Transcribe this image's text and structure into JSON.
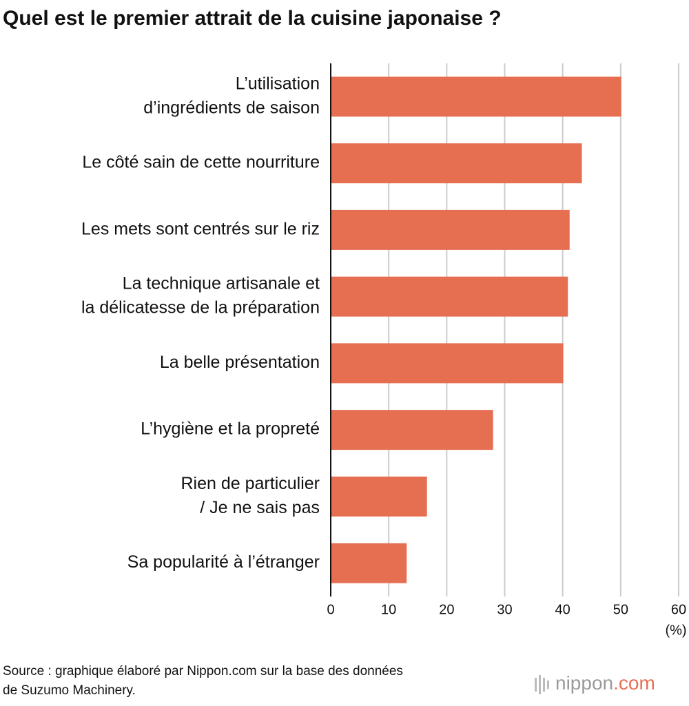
{
  "chart_data": {
    "type": "bar",
    "orientation": "horizontal",
    "title": "Quel est le premier attrait de la cuisine japonaise ?",
    "categories": [
      [
        "L’utilisation",
        "d’ingrédients de saison"
      ],
      [
        "Le côté sain de cette nourriture"
      ],
      [
        "Les mets sont centrés sur le riz"
      ],
      [
        "La technique artisanale et",
        "la délicatesse de la préparation"
      ],
      [
        "La belle présentation"
      ],
      [
        "L’hygiène et la propreté"
      ],
      [
        "Rien de particulier",
        "/ Je ne sais pas"
      ],
      [
        "Sa popularité à l’étranger"
      ]
    ],
    "values": [
      50.1,
      43.3,
      41.2,
      40.9,
      40.1,
      28.0,
      16.6,
      13.1
    ],
    "color": "#e66f52",
    "xlim": [
      0,
      60
    ],
    "xticks": [
      0,
      10,
      20,
      30,
      40,
      50,
      60
    ],
    "grid": true,
    "x_unit": "(%)",
    "source": [
      "Source : graphique élaboré par Nippon.com sur la base des données",
      "de Suzumo Machinery."
    ],
    "logo": [
      "nippon",
      ".com"
    ]
  }
}
